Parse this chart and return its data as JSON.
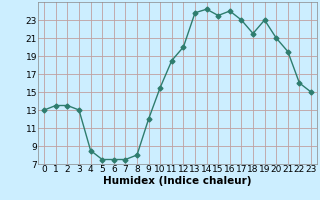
{
  "x": [
    0,
    1,
    2,
    3,
    4,
    5,
    6,
    7,
    8,
    9,
    10,
    11,
    12,
    13,
    14,
    15,
    16,
    17,
    18,
    19,
    20,
    21,
    22,
    23
  ],
  "y": [
    13,
    13.5,
    13.5,
    13,
    8.5,
    7.5,
    7.5,
    7.5,
    8,
    12,
    15.5,
    18.5,
    20,
    23.8,
    24.2,
    23.5,
    24.0,
    23.0,
    21.5,
    23.0,
    21.0,
    19.5,
    16.0,
    15.0
  ],
  "line_color": "#2e7d6e",
  "marker": "D",
  "markersize": 2.5,
  "linewidth": 1.0,
  "bg_color": "#cceeff",
  "grid_color": "#c0a0a0",
  "xlabel": "Humidex (Indice chaleur)",
  "xlim": [
    -0.5,
    23.5
  ],
  "ylim": [
    7,
    25
  ],
  "yticks": [
    7,
    9,
    11,
    13,
    15,
    17,
    19,
    21,
    23
  ],
  "xticks": [
    0,
    1,
    2,
    3,
    4,
    5,
    6,
    7,
    8,
    9,
    10,
    11,
    12,
    13,
    14,
    15,
    16,
    17,
    18,
    19,
    20,
    21,
    22,
    23
  ],
  "xlabel_fontsize": 7.5,
  "tick_fontsize": 6.5
}
